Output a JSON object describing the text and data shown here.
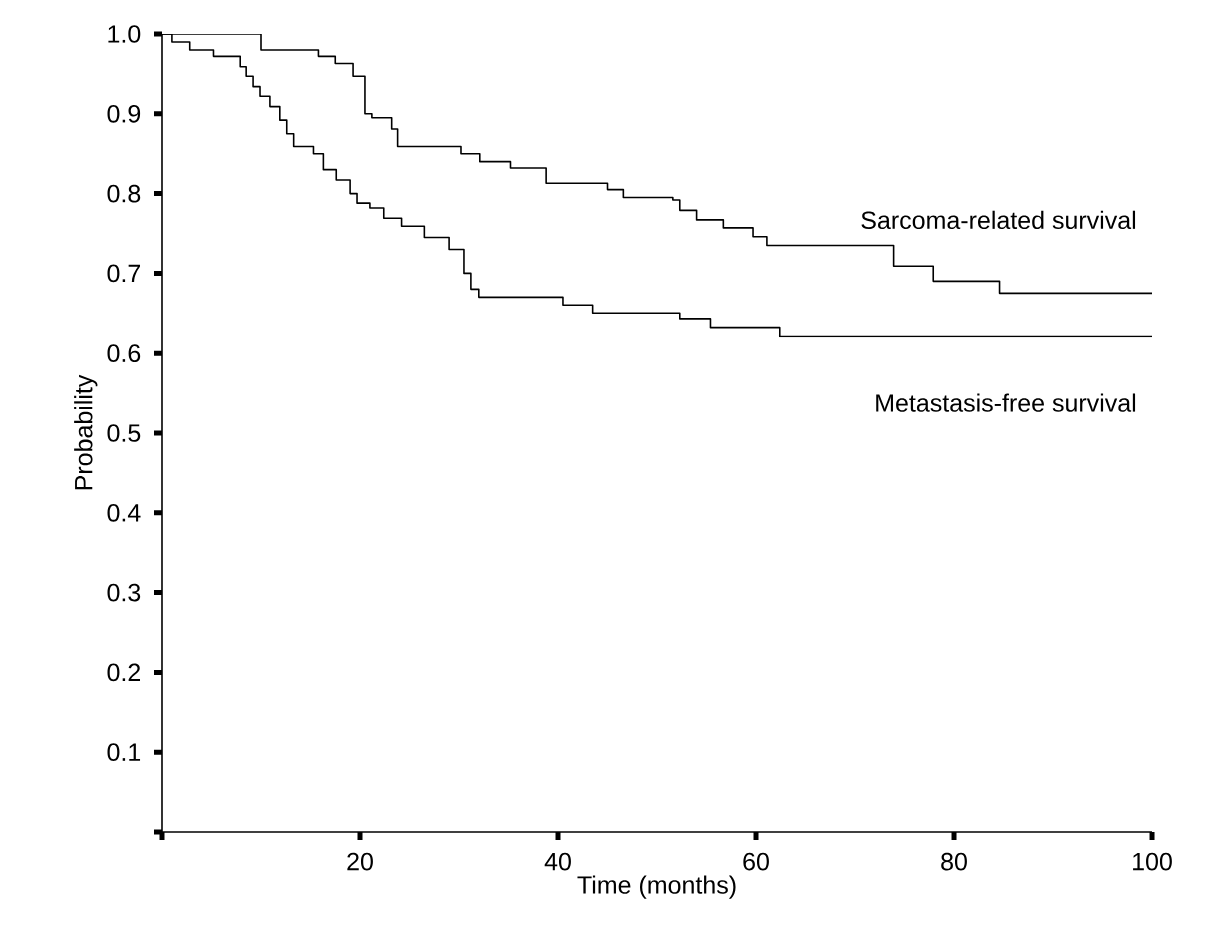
{
  "chart_data": {
    "type": "step",
    "xlabel": "Time (months)",
    "ylabel": "Probability",
    "xlim": [
      0,
      100
    ],
    "ylim": [
      0,
      1.0
    ],
    "xticks": [
      {
        "value": 0,
        "label": null
      },
      20,
      40,
      60,
      80,
      100
    ],
    "yticks": [
      {
        "value": 0,
        "label": null
      },
      0.1,
      0.2,
      0.3,
      0.4,
      0.5,
      0.6,
      0.7,
      0.8,
      0.9,
      {
        "value": 1.0,
        "label": "1.0"
      }
    ],
    "grid": false,
    "legend": false,
    "marker": "none",
    "line_style": "solid",
    "series": [
      {
        "name": "Sarcoma-related survival",
        "color": "#000000",
        "x": [
          0,
          10.0,
          15.8,
          17.5,
          19.3,
          20.5,
          21.2,
          23.2,
          23.8,
          30.2,
          32.1,
          35.2,
          38.8,
          45.0,
          46.6,
          51.6,
          52.3,
          54.0,
          56.7,
          59.7,
          61.1,
          73.9,
          77.9,
          84.6,
          100
        ],
        "values": [
          1.0,
          0.98,
          0.972,
          0.963,
          0.947,
          0.9,
          0.895,
          0.881,
          0.859,
          0.85,
          0.84,
          0.832,
          0.813,
          0.805,
          0.795,
          0.792,
          0.779,
          0.767,
          0.757,
          0.746,
          0.735,
          0.709,
          0.69,
          0.675,
          0.675
        ]
      },
      {
        "name": "Metastasis-free survival",
        "color": "#000000",
        "x": [
          0,
          1.0,
          2.8,
          5.2,
          7.9,
          8.5,
          9.2,
          9.9,
          10.9,
          11.9,
          12.6,
          13.3,
          15.3,
          16.3,
          17.6,
          19.0,
          19.7,
          21.0,
          22.4,
          24.2,
          26.5,
          29.0,
          30.5,
          31.2,
          32.0,
          40.5,
          43.5,
          52.3,
          55.4,
          62.4,
          100
        ],
        "values": [
          1.0,
          0.99,
          0.98,
          0.972,
          0.959,
          0.947,
          0.934,
          0.922,
          0.909,
          0.892,
          0.875,
          0.859,
          0.85,
          0.83,
          0.817,
          0.8,
          0.788,
          0.782,
          0.769,
          0.759,
          0.745,
          0.73,
          0.7,
          0.68,
          0.67,
          0.66,
          0.65,
          0.643,
          0.632,
          0.621,
          0.621
        ]
      }
    ]
  }
}
